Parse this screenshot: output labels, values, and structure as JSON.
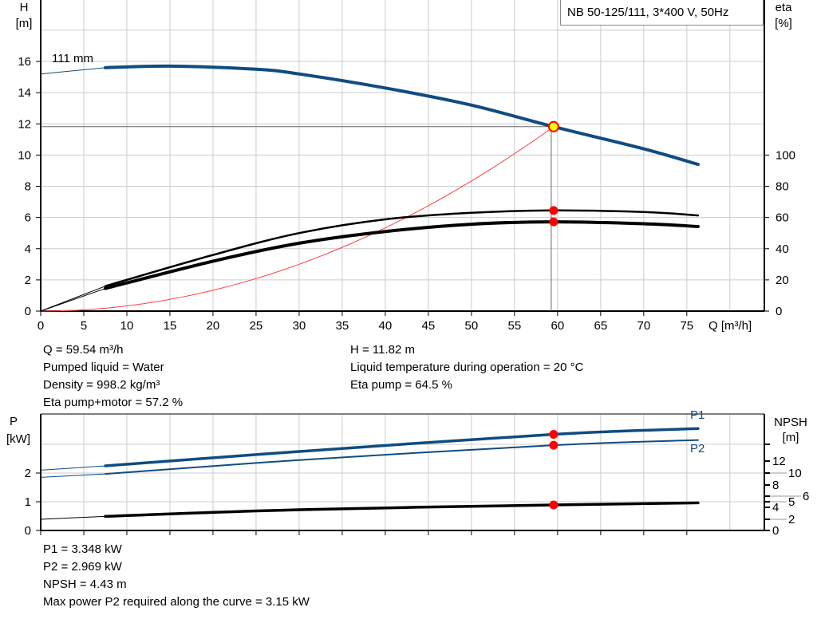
{
  "header": {
    "title": "NB 50-125/111, 3*400 V, 50Hz"
  },
  "colors": {
    "head": "#0f4c81",
    "eta": "#000000",
    "system": "#ff4040",
    "marker": "#ff0000",
    "duty_fill": "#ffff00",
    "power": "#0f4c81",
    "npsh": "#000000",
    "grid": "#cccccc"
  },
  "chart_data": [
    {
      "type": "line",
      "x_axis": {
        "label": "Q [m³/h]",
        "range": [
          0,
          84
        ],
        "ticks": [
          0,
          5,
          10,
          15,
          20,
          25,
          30,
          35,
          40,
          45,
          50,
          55,
          60,
          65,
          70,
          75
        ]
      },
      "y_axis_left": {
        "label_top": "H",
        "label_unit": "[m]",
        "range": [
          0,
          20
        ],
        "ticks": [
          0,
          2,
          4,
          6,
          8,
          10,
          12,
          14,
          16
        ]
      },
      "y_axis_right": {
        "label_top": "eta",
        "label_unit": "[%]",
        "range": [
          0,
          102
        ],
        "ticks": [
          0,
          20,
          40,
          60,
          80,
          100
        ]
      },
      "grid": true,
      "annotation": "111 mm",
      "series": [
        {
          "key": "head",
          "axis": "left",
          "x": [
            0,
            7.5,
            15,
            25,
            30,
            40,
            50,
            59.54,
            70,
            76.3
          ],
          "y": [
            15.2,
            15.6,
            15.7,
            15.5,
            15.2,
            14.3,
            13.2,
            11.82,
            10.4,
            9.4
          ]
        },
        {
          "key": "eta_pump",
          "axis": "right",
          "x": [
            0,
            7.5,
            20,
            30,
            40,
            50,
            59.54,
            70,
            76.3
          ],
          "y": [
            0,
            16,
            36,
            50,
            58.8,
            63,
            64.5,
            63.5,
            61.3
          ]
        },
        {
          "key": "eta_pump_motor",
          "axis": "right",
          "x": [
            0,
            7.5,
            20,
            30,
            40,
            50,
            59.54,
            70,
            76.3
          ],
          "y": [
            0,
            14.5,
            32,
            43.5,
            51,
            55.7,
            57.2,
            56,
            54.2
          ]
        },
        {
          "key": "system",
          "axis": "left",
          "quadratic_through": [
            59.54,
            11.82
          ]
        }
      ],
      "duty_point": {
        "Q": 59.54,
        "H": 11.82,
        "eta_pump": 64.5,
        "eta_pump_motor": 57.2
      }
    },
    {
      "type": "line",
      "x_axis": {
        "range": [
          0,
          84
        ],
        "ticks": [
          0,
          5,
          10,
          15,
          20,
          25,
          30,
          35,
          40,
          45,
          50,
          55,
          60,
          65,
          70,
          75
        ]
      },
      "y_axis_left": {
        "label_top": "P",
        "label_unit": "[kW]",
        "range": [
          0,
          4.05
        ],
        "ticks": [
          0,
          1,
          2
        ]
      },
      "y_axis_right": {
        "label_top": "NPSH",
        "label_unit": "[m]",
        "ticks": [
          0,
          2,
          4,
          5,
          6,
          8,
          10,
          12
        ]
      },
      "grid": true,
      "series": [
        {
          "name": "P1",
          "axis": "left",
          "x": [
            0,
            7.5,
            30,
            59.54,
            76.3
          ],
          "y": [
            2.1,
            2.25,
            2.75,
            3.348,
            3.55
          ]
        },
        {
          "name": "P2",
          "axis": "left",
          "x": [
            0,
            7.5,
            30,
            59.54,
            76.3
          ],
          "y": [
            1.85,
            1.97,
            2.45,
            2.969,
            3.15
          ]
        },
        {
          "key": "npsh",
          "axis": "right",
          "x": [
            0,
            7.5,
            30,
            59.54,
            76.3
          ],
          "y": [
            2.0,
            2.5,
            3.6,
            4.43,
            4.8
          ]
        }
      ],
      "duty_point": {
        "Q": 59.54,
        "P1": 3.348,
        "P2": 2.969,
        "NPSH": 4.43
      }
    }
  ],
  "info_top_left": [
    "Q = 59.54 m³/h",
    "Pumped liquid = Water",
    "Density = 998.2 kg/m³",
    "Eta pump+motor = 57.2 %"
  ],
  "info_top_right": [
    "H = 11.82 m",
    "Liquid temperature during operation = 20 °C",
    "Eta pump = 64.5 %"
  ],
  "info_bottom": [
    "P1 = 3.348 kW",
    "P2 = 2.969 kW",
    "NPSH = 4.43 m",
    "Max power P2 required along the curve = 3.15 kW"
  ]
}
